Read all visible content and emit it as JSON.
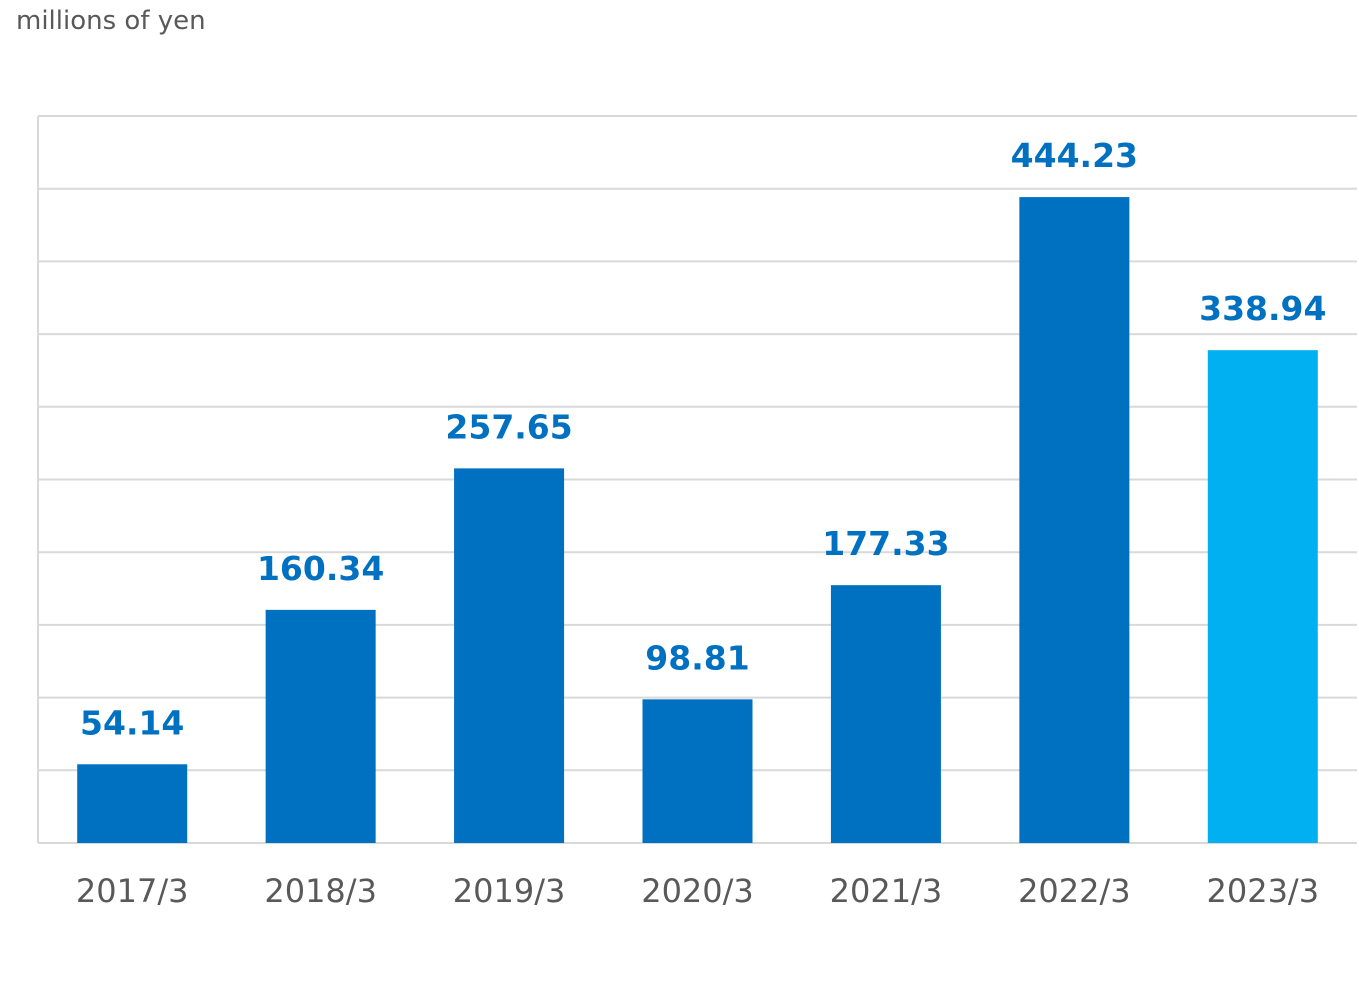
{
  "chart_data": {
    "type": "bar",
    "title": "",
    "xlabel": "",
    "ylabel": "millions of yen",
    "categories": [
      "2017/3",
      "2018/3",
      "2019/3",
      "2020/3",
      "2021/3",
      "2022/3",
      "2023/3"
    ],
    "values": [
      54.14,
      160.34,
      257.65,
      98.81,
      177.33,
      444.23,
      338.94
    ],
    "value_labels": [
      "54.14",
      "160.34",
      "257.65",
      "98.81",
      "177.33",
      "444.23",
      "338.94"
    ],
    "ylim": [
      0,
      500
    ],
    "gridlines": 10,
    "grid": true,
    "legend": "none",
    "colors": {
      "bar": "#0070C0",
      "highlight_bar": "#00B0F0",
      "data_label": "#0070C0",
      "tick_label": "#595959",
      "grid": "#D9D9D9"
    },
    "highlight_index": 6
  }
}
